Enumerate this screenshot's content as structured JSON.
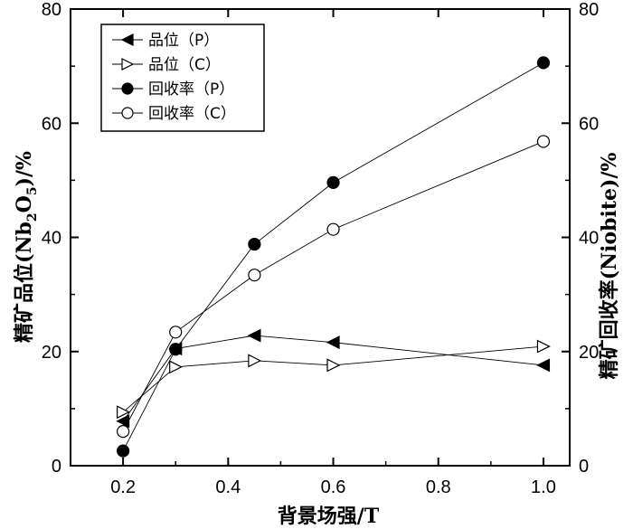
{
  "chart_data": {
    "type": "line",
    "xlabel": "背景场强/T",
    "ylabel_left": "精矿品位(Nb2O5)/%",
    "ylabel_left_parts": [
      "精矿品位(Nb",
      "2",
      "O",
      "5",
      ")/%"
    ],
    "ylabel_right": "精矿回收率(Niobite)/%",
    "xlim": [
      0.1,
      1.05
    ],
    "ylim": [
      0,
      80
    ],
    "x_ticks": [
      0.2,
      0.4,
      0.6,
      0.8,
      1.0
    ],
    "x_tick_labels": [
      "0.2",
      "0.4",
      "0.6",
      "0.8",
      "1.0"
    ],
    "y_ticks": [
      0,
      20,
      40,
      60,
      80
    ],
    "y_tick_labels": [
      "0",
      "20",
      "40",
      "60",
      "80"
    ],
    "grid": false,
    "legend_position": "top-left",
    "series": [
      {
        "name": "品位（P）",
        "marker": "triangle-left",
        "filled": true,
        "x": [
          0.2,
          0.3,
          0.45,
          0.6,
          1.0
        ],
        "y": [
          7.8,
          20.5,
          22.8,
          21.6,
          17.6
        ]
      },
      {
        "name": "品位（C）",
        "marker": "triangle-right",
        "filled": false,
        "x": [
          0.2,
          0.3,
          0.45,
          0.6,
          1.0
        ],
        "y": [
          9.4,
          17.3,
          18.4,
          17.6,
          20.9
        ]
      },
      {
        "name": "回收率（P）",
        "marker": "circle",
        "filled": true,
        "x": [
          0.2,
          0.3,
          0.45,
          0.6,
          1.0
        ],
        "y": [
          2.6,
          20.4,
          38.8,
          49.6,
          70.6
        ]
      },
      {
        "name": "回收率（C）",
        "marker": "circle",
        "filled": false,
        "x": [
          0.2,
          0.3,
          0.45,
          0.6,
          1.0
        ],
        "y": [
          6.0,
          23.4,
          33.4,
          41.4,
          56.8
        ]
      }
    ]
  }
}
